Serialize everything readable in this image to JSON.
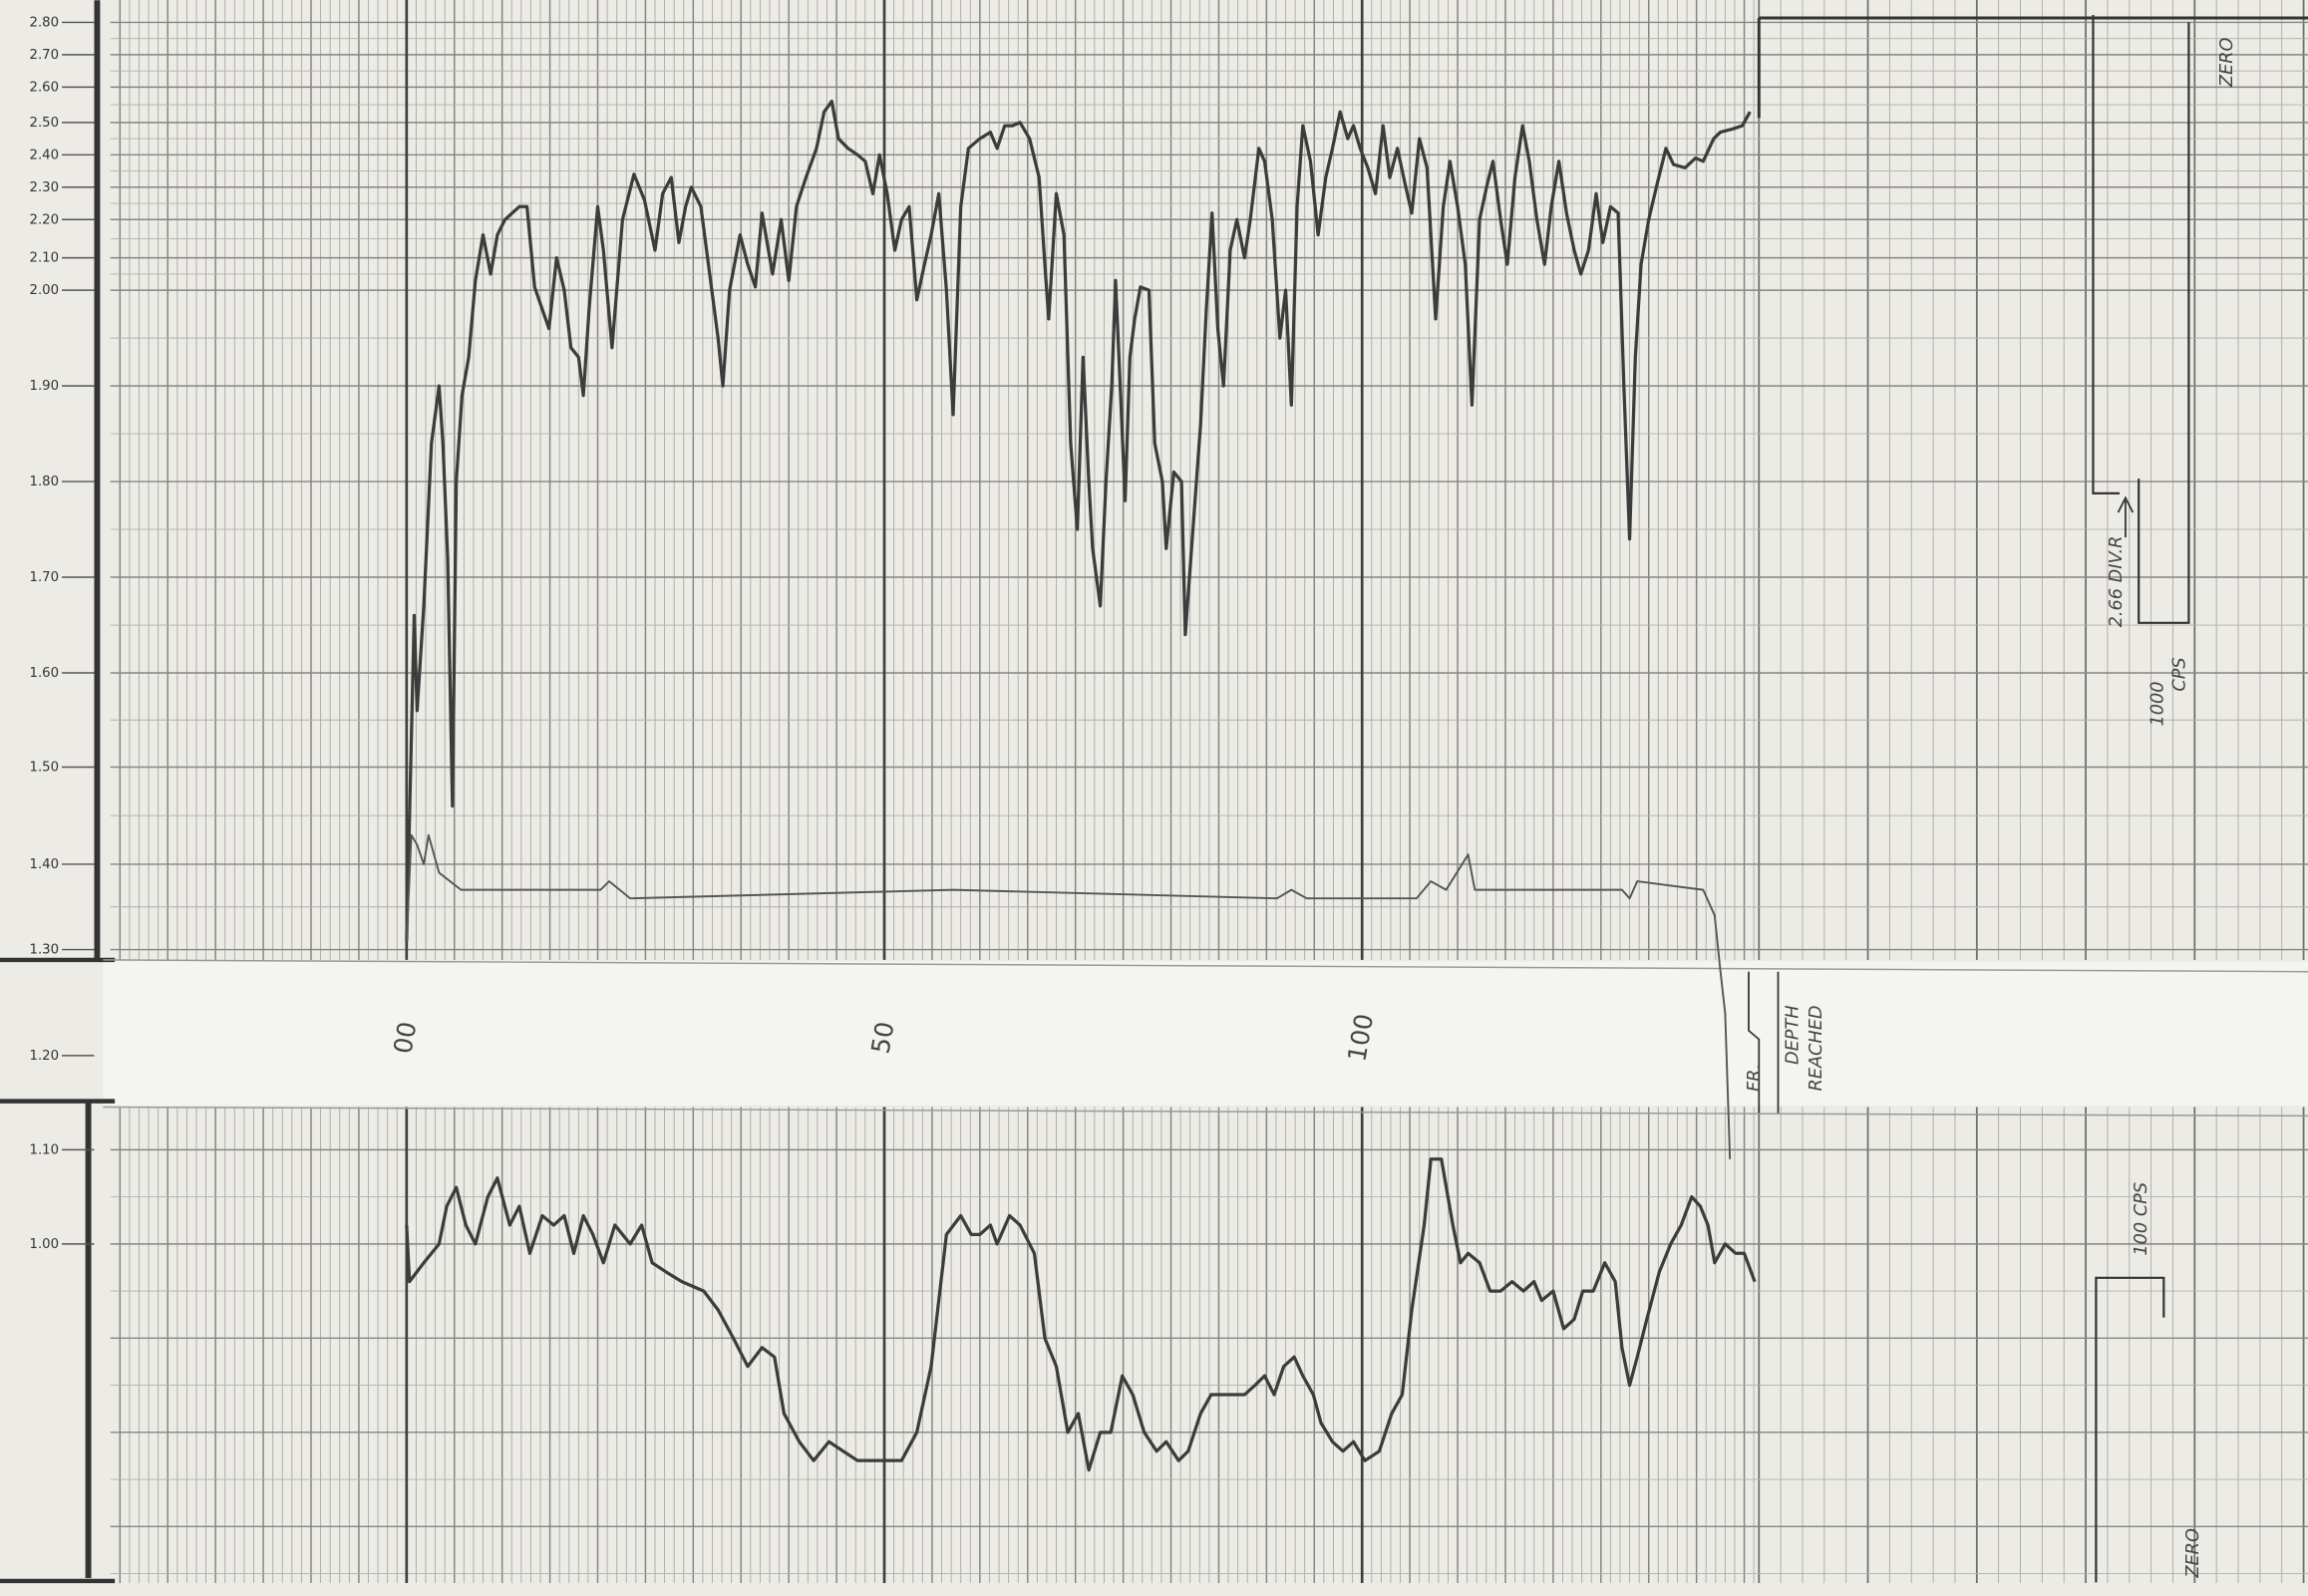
{
  "chart_data": {
    "type": "line",
    "xlim": [
      -31,
      199
    ],
    "xticks": [
      {
        "value": 0,
        "label": "00"
      },
      50,
      100
    ],
    "ylim": [
      0.64,
      2.87
    ],
    "yticks": [
      {
        "value": 2.8,
        "label": "2.80"
      },
      {
        "value": 2.7,
        "label": "2.70"
      },
      {
        "value": 2.6,
        "label": "2.60"
      },
      {
        "value": 2.5,
        "label": "2.50"
      },
      {
        "value": 2.4,
        "label": "2.40"
      },
      {
        "value": 2.3,
        "label": "2.30"
      },
      {
        "value": 2.2,
        "label": "2.20"
      },
      {
        "value": 2.1,
        "label": "2.10"
      },
      {
        "value": 2.0,
        "label": "2.00"
      },
      {
        "value": 1.9,
        "label": "1.90"
      },
      {
        "value": 1.8,
        "label": "1.80"
      },
      {
        "value": 1.7,
        "label": "1.70"
      },
      {
        "value": 1.6,
        "label": "1.60"
      },
      {
        "value": 1.5,
        "label": "1.50"
      },
      {
        "value": 1.4,
        "label": "1.40"
      },
      {
        "value": 1.3,
        "label": "1.30"
      },
      {
        "value": 1.2,
        "label": "1.20"
      },
      {
        "value": 1.1,
        "label": "1.10"
      },
      {
        "value": 1.0,
        "label": "1.00"
      }
    ],
    "grid": true,
    "series": [
      {
        "color": "#3c3c3c",
        "x": [
          0,
          0.8,
          1.1,
          1.8,
          2.6,
          3.4,
          3.8,
          4.3,
          4.8,
          5.2,
          5.8,
          6.5,
          7.2,
          8.0,
          8.8,
          9.5,
          10.3,
          11.8,
          12.6,
          13.4,
          14.2,
          14.9,
          15.7,
          16.5,
          17.2,
          18.0,
          18.5,
          19.1,
          20.0,
          20.6,
          21.5,
          22.6,
          23.8,
          24.9,
          26.0,
          26.8,
          27.7,
          28.5,
          29.2,
          29.8,
          30.8,
          31.5,
          32.6,
          33.1,
          33.8,
          34.9,
          35.7,
          36.5,
          37.2,
          38.3,
          39.2,
          40.0,
          40.8,
          41.8,
          42.9,
          43.7,
          44.5,
          45.2,
          46.2,
          47.2,
          48.0,
          48.8,
          49.5,
          50.3,
          51.1,
          51.8,
          52.6,
          53.4,
          54.2,
          54.9,
          55.7,
          56.5,
          57.2,
          58.0,
          58.8,
          60.0,
          61.1,
          61.8,
          62.6,
          63.4,
          64.2,
          65.2,
          66.2,
          66.8,
          67.2,
          68.0,
          68.8,
          69.5,
          70.2,
          70.8,
          71.4,
          71.8,
          72.6,
          73.2,
          73.8,
          74.2,
          74.6,
          75.2,
          75.7,
          76.2,
          76.8,
          77.7,
          78.3,
          79.1,
          79.5,
          80.3,
          81.1,
          81.5,
          82.3,
          83.1,
          83.7,
          84.3,
          84.9,
          85.5,
          86.2,
          86.9,
          87.7,
          88.3,
          89.2,
          89.8,
          90.6,
          91.4,
          92.0,
          92.6,
          93.2,
          93.8,
          94.6,
          95.4,
          96.2,
          96.9,
          97.7,
          98.5,
          99.1,
          99.8,
          100.6,
          101.4,
          102.2,
          102.9,
          103.7,
          104.5,
          105.2,
          106.0,
          106.8,
          107.7,
          108.5,
          109.2,
          110.0,
          110.8,
          111.5,
          112.3,
          113.1,
          113.7,
          114.5,
          115.2,
          116.0,
          116.8,
          117.5,
          118.3,
          119.1,
          119.8,
          120.6,
          121.4,
          122.2,
          122.9,
          123.7,
          124.5,
          125.2,
          126.0,
          126.8,
          127.4,
          128.0,
          128.6,
          129.2,
          130.0,
          130.8,
          131.8,
          132.6,
          133.8,
          134.9,
          135.7,
          136.8,
          137.5,
          138.8,
          139.8,
          140.6
        ],
        "values": [
          1.31,
          1.66,
          1.56,
          1.67,
          1.84,
          1.9,
          1.84,
          1.72,
          1.46,
          1.8,
          1.89,
          1.93,
          2.03,
          2.16,
          2.05,
          2.16,
          2.2,
          2.24,
          2.24,
          2.01,
          1.98,
          1.96,
          2.1,
          2.0,
          1.94,
          1.93,
          1.89,
          1.98,
          2.24,
          2.12,
          1.94,
          2.2,
          2.34,
          2.26,
          2.12,
          2.28,
          2.33,
          2.14,
          2.24,
          2.3,
          2.24,
          2.1,
          1.95,
          1.9,
          2.0,
          2.16,
          2.08,
          2.01,
          2.22,
          2.05,
          2.2,
          2.03,
          2.24,
          2.33,
          2.42,
          2.53,
          2.56,
          2.45,
          2.42,
          2.4,
          2.38,
          2.28,
          2.4,
          2.28,
          2.12,
          2.2,
          2.24,
          1.99,
          2.08,
          2.16,
          2.28,
          2.0,
          1.87,
          2.24,
          2.42,
          2.45,
          2.47,
          2.42,
          2.49,
          2.49,
          2.5,
          2.45,
          2.33,
          2.08,
          1.97,
          2.28,
          2.16,
          1.84,
          1.75,
          1.93,
          1.8,
          1.73,
          1.67,
          1.8,
          1.9,
          2.03,
          1.92,
          1.78,
          1.93,
          1.97,
          2.01,
          2.0,
          1.84,
          1.8,
          1.73,
          1.81,
          1.8,
          1.64,
          1.75,
          1.86,
          1.98,
          2.22,
          1.96,
          1.9,
          2.12,
          2.2,
          2.1,
          2.2,
          2.42,
          2.38,
          2.2,
          1.95,
          2.0,
          1.88,
          2.24,
          2.49,
          2.38,
          2.16,
          2.33,
          2.42,
          2.53,
          2.45,
          2.49,
          2.42,
          2.36,
          2.28,
          2.49,
          2.33,
          2.42,
          2.31,
          2.22,
          2.45,
          2.36,
          1.97,
          2.24,
          2.38,
          2.24,
          2.08,
          1.88,
          2.2,
          2.31,
          2.38,
          2.2,
          2.08,
          2.33,
          2.49,
          2.38,
          2.2,
          2.08,
          2.24,
          2.38,
          2.22,
          2.12,
          2.05,
          2.12,
          2.28,
          2.14,
          2.24,
          2.22,
          1.9,
          1.74,
          1.93,
          2.08,
          2.2,
          2.3,
          2.42,
          2.37,
          2.36,
          2.39,
          2.38,
          2.45,
          2.47,
          2.48,
          2.49,
          2.53
        ]
      },
      {
        "color": "#555555",
        "x": [
          0,
          0.5,
          1.1,
          1.8,
          2.3,
          3.4,
          5.7,
          20.3,
          21.2,
          23.4,
          57.2,
          91.1,
          92.6,
          94.2,
          105.7,
          107.2,
          108.8,
          111.1,
          111.8,
          127.2,
          128.0,
          128.8,
          135.7,
          136.9,
          137.5,
          138.0,
          138.5
        ],
        "values": [
          1.31,
          1.43,
          1.42,
          1.4,
          1.43,
          1.39,
          1.37,
          1.37,
          1.38,
          1.36,
          1.37,
          1.36,
          1.37,
          1.36,
          1.36,
          1.38,
          1.37,
          1.41,
          1.37,
          1.37,
          1.36,
          1.38,
          1.37,
          1.34,
          1.28,
          1.24,
          1.09
        ]
      },
      {
        "color": "#3c3c3c",
        "x": [
          0,
          0.3,
          1.8,
          3.4,
          4.2,
          5.2,
          6.2,
          7.2,
          8.5,
          9.5,
          10.8,
          11.8,
          12.9,
          14.2,
          15.4,
          16.5,
          17.5,
          18.5,
          19.5,
          20.6,
          21.8,
          23.4,
          24.6,
          25.7,
          27.2,
          28.8,
          31.1,
          32.6,
          34.2,
          35.7,
          37.2,
          38.5,
          39.5,
          41.1,
          42.6,
          44.2,
          45.7,
          47.2,
          48.8,
          50.3,
          51.8,
          53.4,
          54.9,
          56.5,
          58.0,
          59.1,
          60.0,
          61.1,
          61.8,
          63.1,
          64.2,
          65.7,
          66.8,
          68.0,
          69.2,
          70.3,
          71.4,
          72.6,
          73.7,
          74.9,
          76.0,
          77.2,
          78.5,
          79.5,
          80.8,
          81.8,
          83.1,
          84.2,
          85.4,
          86.5,
          87.7,
          88.8,
          89.8,
          90.8,
          91.8,
          92.9,
          93.8,
          94.9,
          95.7,
          96.9,
          98.0,
          99.1,
          100.3,
          101.8,
          103.1,
          104.2,
          105.2,
          106.5,
          107.2,
          108.3,
          109.5,
          110.3,
          111.1,
          112.3,
          113.4,
          114.5,
          115.7,
          116.9,
          118.0,
          118.8,
          120.0,
          121.1,
          122.2,
          123.1,
          124.2,
          125.4,
          126.5,
          127.2,
          128.0,
          128.8,
          129.8,
          131.1,
          132.3,
          133.4,
          134.5,
          135.4,
          136.2,
          136.9,
          138.0,
          139.1,
          140.0,
          141.1
        ],
        "values": [
          1.02,
          0.96,
          0.98,
          1.0,
          1.04,
          1.06,
          1.02,
          1.0,
          1.05,
          1.07,
          1.02,
          1.04,
          0.99,
          1.03,
          1.02,
          1.03,
          0.99,
          1.03,
          1.01,
          0.98,
          1.02,
          1.0,
          1.02,
          0.98,
          0.97,
          0.96,
          0.95,
          0.93,
          0.9,
          0.87,
          0.89,
          0.88,
          0.82,
          0.79,
          0.77,
          0.79,
          0.78,
          0.77,
          0.77,
          0.77,
          0.77,
          0.8,
          0.87,
          1.01,
          1.03,
          1.01,
          1.01,
          1.02,
          1.0,
          1.03,
          1.02,
          0.99,
          0.9,
          0.87,
          0.8,
          0.82,
          0.76,
          0.8,
          0.8,
          0.86,
          0.84,
          0.8,
          0.78,
          0.79,
          0.77,
          0.78,
          0.82,
          0.84,
          0.84,
          0.84,
          0.84,
          0.85,
          0.86,
          0.84,
          0.87,
          0.88,
          0.86,
          0.84,
          0.81,
          0.79,
          0.78,
          0.79,
          0.77,
          0.78,
          0.82,
          0.84,
          0.93,
          1.02,
          1.09,
          1.09,
          1.02,
          0.98,
          0.99,
          0.98,
          0.95,
          0.95,
          0.96,
          0.95,
          0.96,
          0.94,
          0.95,
          0.91,
          0.92,
          0.95,
          0.95,
          0.98,
          0.96,
          0.89,
          0.85,
          0.88,
          0.92,
          0.97,
          1.0,
          1.02,
          1.05,
          1.04,
          1.02,
          0.98,
          1.0,
          0.99,
          0.99,
          0.96
        ]
      }
    ],
    "annotations": [
      "2.66 DIV.R",
      "1000",
      "CPS",
      "ZERO",
      "FR.",
      "DEPTH",
      "REACHED",
      "100 CPS",
      "ZERO"
    ]
  }
}
